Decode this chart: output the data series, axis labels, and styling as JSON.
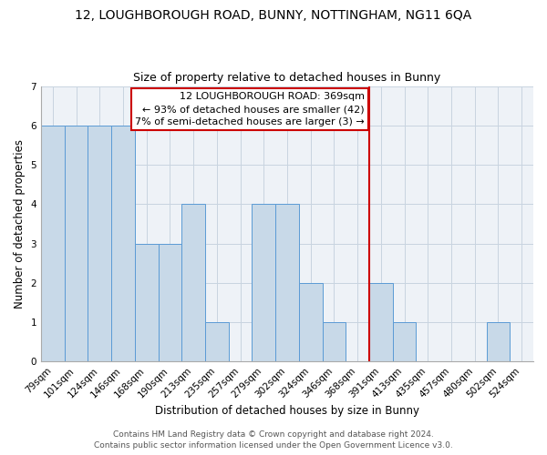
{
  "title": "12, LOUGHBOROUGH ROAD, BUNNY, NOTTINGHAM, NG11 6QA",
  "subtitle": "Size of property relative to detached houses in Bunny",
  "xlabel": "Distribution of detached houses by size in Bunny",
  "ylabel": "Number of detached properties",
  "footer_line1": "Contains HM Land Registry data © Crown copyright and database right 2024.",
  "footer_line2": "Contains public sector information licensed under the Open Government Licence v3.0.",
  "categories": [
    "79sqm",
    "101sqm",
    "124sqm",
    "146sqm",
    "168sqm",
    "190sqm",
    "213sqm",
    "235sqm",
    "257sqm",
    "279sqm",
    "302sqm",
    "324sqm",
    "346sqm",
    "368sqm",
    "391sqm",
    "413sqm",
    "435sqm",
    "457sqm",
    "480sqm",
    "502sqm",
    "524sqm"
  ],
  "values": [
    6,
    6,
    6,
    6,
    3,
    3,
    4,
    1,
    0,
    4,
    4,
    2,
    1,
    0,
    2,
    1,
    0,
    0,
    0,
    1,
    0
  ],
  "bar_color": "#c8d9e8",
  "bar_edge_color": "#5b9bd5",
  "bar_edge_width": 0.7,
  "ylim": [
    0,
    7
  ],
  "yticks": [
    0,
    1,
    2,
    3,
    4,
    5,
    6,
    7
  ],
  "grid_color": "#c8d4e0",
  "background_color": "#eef2f7",
  "red_line_index": 13,
  "annotation_title": "12 LOUGHBOROUGH ROAD: 369sqm",
  "annotation_line2": "← 93% of detached houses are smaller (42)",
  "annotation_line3": "7% of semi-detached houses are larger (3) →",
  "annotation_box_edgecolor": "#cc0000",
  "annotation_box_facecolor": "#ffffff",
  "red_line_color": "#cc0000",
  "title_fontsize": 10,
  "subtitle_fontsize": 9,
  "axis_label_fontsize": 8.5,
  "tick_fontsize": 7.5,
  "annotation_fontsize": 8,
  "footer_fontsize": 6.5
}
